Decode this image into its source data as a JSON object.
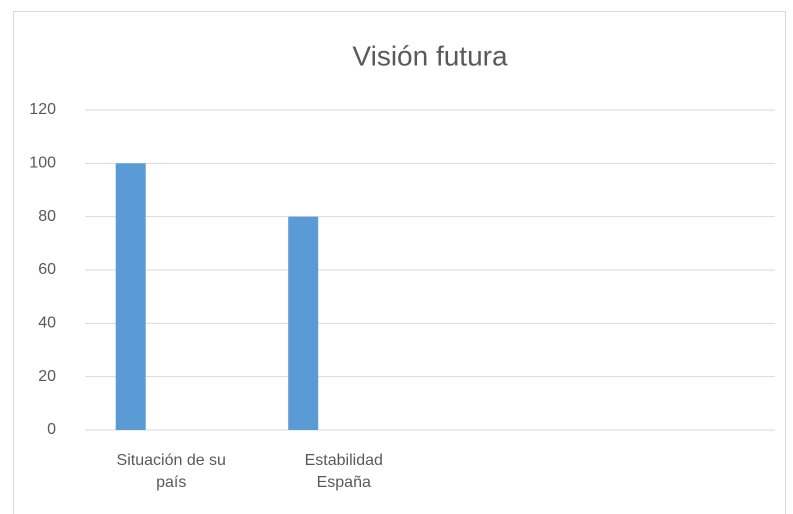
{
  "chart_data": {
    "type": "bar",
    "title": "Visión futura",
    "categories": [
      "Situación de su país",
      "Estabilidad España",
      null,
      null
    ],
    "values": [
      100,
      80,
      null,
      null
    ],
    "color": "#5b9bd5",
    "ylim": [
      0,
      120
    ],
    "yticks": [
      0,
      20,
      40,
      60,
      80,
      100,
      120
    ],
    "grid": true
  }
}
